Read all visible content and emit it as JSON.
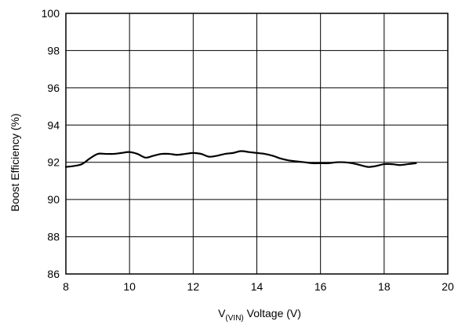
{
  "chart_data": {
    "type": "line",
    "xlabel_main": "V",
    "xlabel_sub": "(VIN)",
    "xlabel_rest": " Voltage (V)",
    "ylabel": "Boost Efficiency (%)",
    "xlim": [
      8,
      20
    ],
    "ylim": [
      86,
      100
    ],
    "x_ticks": [
      8,
      10,
      12,
      14,
      16,
      18,
      20
    ],
    "y_ticks": [
      86,
      88,
      90,
      92,
      94,
      96,
      98,
      100
    ],
    "grid": true,
    "line_color": "#000000",
    "series": [
      {
        "x": [
          8.0,
          8.25,
          8.5,
          8.75,
          9.0,
          9.25,
          9.5,
          9.75,
          10.0,
          10.25,
          10.5,
          10.75,
          11.0,
          11.25,
          11.5,
          11.75,
          12.0,
          12.25,
          12.5,
          12.75,
          13.0,
          13.25,
          13.5,
          13.75,
          14.0,
          14.25,
          14.5,
          14.75,
          15.0,
          15.25,
          15.5,
          15.75,
          16.0,
          16.25,
          16.5,
          16.75,
          17.0,
          17.25,
          17.5,
          17.75,
          18.0,
          18.25,
          18.5,
          18.75,
          19.0
        ],
        "y": [
          91.75,
          91.8,
          91.9,
          92.2,
          92.45,
          92.45,
          92.45,
          92.5,
          92.55,
          92.45,
          92.25,
          92.35,
          92.45,
          92.45,
          92.4,
          92.45,
          92.5,
          92.45,
          92.3,
          92.35,
          92.45,
          92.5,
          92.6,
          92.55,
          92.5,
          92.45,
          92.35,
          92.2,
          92.1,
          92.05,
          92.0,
          91.95,
          91.95,
          91.95,
          92.0,
          92.0,
          91.95,
          91.85,
          91.75,
          91.8,
          91.9,
          91.9,
          91.85,
          91.9,
          91.95
        ]
      }
    ]
  }
}
